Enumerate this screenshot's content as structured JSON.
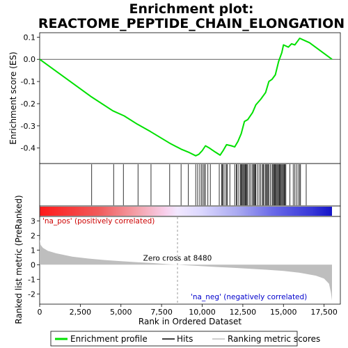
{
  "chart_data": {
    "type": "line",
    "title": [
      "Enrichment plot:",
      "REACTOME_PEPTIDE_CHAIN_ELONGATION"
    ],
    "n_genes": 17984,
    "x": {
      "label": "Rank in Ordered Dataset",
      "range": [
        0,
        18500
      ],
      "ticks": [
        0,
        2500,
        5000,
        7500,
        10000,
        12500,
        15000,
        17500
      ],
      "tick_labels": [
        "0",
        "2,500",
        "5,000",
        "7,500",
        "10,000",
        "12,500",
        "15,000",
        "17,500"
      ]
    },
    "es_panel": {
      "ylabel": "Enrichment score (ES)",
      "ylim": [
        -0.47,
        0.12
      ],
      "yticks": [
        -0.4,
        -0.3,
        -0.2,
        -0.1,
        0.0,
        0.1
      ],
      "ytick_labels": [
        "-0.4",
        "-0.3",
        "-0.2",
        "-0.1",
        "0.0",
        "0.1"
      ],
      "line_color": "#00e000",
      "profile": [
        [
          0,
          0.0
        ],
        [
          3200,
          -0.17
        ],
        [
          4500,
          -0.232
        ],
        [
          5200,
          -0.255
        ],
        [
          6000,
          -0.292
        ],
        [
          6800,
          -0.325
        ],
        [
          8000,
          -0.378
        ],
        [
          8700,
          -0.405
        ],
        [
          9200,
          -0.42
        ],
        [
          9600,
          -0.435
        ],
        [
          9800,
          -0.428
        ],
        [
          10000,
          -0.412
        ],
        [
          10200,
          -0.39
        ],
        [
          10400,
          -0.398
        ],
        [
          10800,
          -0.418
        ],
        [
          11100,
          -0.432
        ],
        [
          11300,
          -0.41
        ],
        [
          11500,
          -0.385
        ],
        [
          11800,
          -0.39
        ],
        [
          12000,
          -0.395
        ],
        [
          12200,
          -0.37
        ],
        [
          12400,
          -0.335
        ],
        [
          12600,
          -0.28
        ],
        [
          12800,
          -0.272
        ],
        [
          13100,
          -0.24
        ],
        [
          13300,
          -0.205
        ],
        [
          13600,
          -0.18
        ],
        [
          13900,
          -0.15
        ],
        [
          14100,
          -0.1
        ],
        [
          14300,
          -0.09
        ],
        [
          14500,
          -0.07
        ],
        [
          14700,
          -0.01
        ],
        [
          14900,
          0.03
        ],
        [
          15000,
          0.065
        ],
        [
          15300,
          0.055
        ],
        [
          15500,
          0.07
        ],
        [
          15700,
          0.065
        ],
        [
          15900,
          0.085
        ],
        [
          16000,
          0.095
        ],
        [
          16300,
          0.085
        ],
        [
          16600,
          0.075
        ],
        [
          17984,
          0.0
        ]
      ]
    },
    "hits": [
      3200,
      4550,
      5150,
      6050,
      6850,
      8000,
      8700,
      9150,
      9600,
      9720,
      9850,
      9950,
      10050,
      10120,
      10200,
      10350,
      10500,
      11050,
      11200,
      11250,
      11300,
      11400,
      11500,
      11550,
      11700,
      12000,
      12100,
      12150,
      12250,
      12350,
      12400,
      12450,
      12500,
      12550,
      12600,
      12650,
      12700,
      12750,
      12800,
      12900,
      13000,
      13100,
      13150,
      13200,
      13250,
      13300,
      13400,
      13500,
      13600,
      13700,
      13750,
      13800,
      13900,
      13950,
      14000,
      14050,
      14100,
      14200,
      14300,
      14350,
      14400,
      14450,
      14500,
      14550,
      14600,
      14650,
      14700,
      14750,
      14800,
      14850,
      14900,
      14950,
      15000,
      15050,
      15100,
      15150,
      15400,
      15600,
      15700,
      15800,
      15900,
      16000,
      16050,
      16400
    ],
    "color_bar": {
      "stops": [
        [
          0.0,
          "#ff1a1a"
        ],
        [
          0.2,
          "#f05a5a"
        ],
        [
          0.33,
          "#f4a0a8"
        ],
        [
          0.43,
          "#f8d0ec"
        ],
        [
          0.47,
          "#f2e8ff"
        ],
        [
          0.55,
          "#dcd8ff"
        ],
        [
          0.68,
          "#a8a8f0"
        ],
        [
          0.8,
          "#6868e8"
        ],
        [
          0.93,
          "#3838d8"
        ],
        [
          1.0,
          "#1414c8"
        ]
      ]
    },
    "metric_panel": {
      "ylabel": "Ranked list metric (PreRanked)",
      "ylim": [
        -2.7,
        3.3
      ],
      "yticks": [
        -2,
        -1,
        0,
        1,
        2,
        3
      ],
      "ytick_labels": [
        "-2",
        "-1",
        "0",
        "1",
        "2",
        "3"
      ],
      "fill_color": "#bebebe",
      "curve": [
        [
          0,
          1.75
        ],
        [
          60,
          1.35
        ],
        [
          200,
          1.15
        ],
        [
          500,
          0.95
        ],
        [
          1000,
          0.78
        ],
        [
          2000,
          0.55
        ],
        [
          3000,
          0.42
        ],
        [
          4000,
          0.32
        ],
        [
          5000,
          0.24
        ],
        [
          6000,
          0.17
        ],
        [
          7000,
          0.11
        ],
        [
          8000,
          0.03
        ],
        [
          8480,
          0.0
        ],
        [
          9000,
          -0.04
        ],
        [
          10000,
          -0.1
        ],
        [
          11000,
          -0.16
        ],
        [
          12000,
          -0.22
        ],
        [
          13000,
          -0.28
        ],
        [
          14000,
          -0.35
        ],
        [
          15000,
          -0.43
        ],
        [
          16000,
          -0.55
        ],
        [
          17000,
          -0.75
        ],
        [
          17500,
          -0.95
        ],
        [
          17800,
          -1.3
        ],
        [
          17920,
          -1.9
        ],
        [
          17984,
          -2.45
        ]
      ],
      "zero_cross": 8480,
      "zero_cross_label": "Zero cross at 8480",
      "pos_label": "'na_pos' (positively correlated)",
      "neg_label": "'na_neg' (negatively correlated)"
    },
    "legend": {
      "items": [
        {
          "label": "Enrichment profile",
          "color": "#00e000"
        },
        {
          "label": "Hits",
          "color": "#000000"
        },
        {
          "label": "Ranking metric scores",
          "color": "#bebebe"
        }
      ]
    }
  }
}
